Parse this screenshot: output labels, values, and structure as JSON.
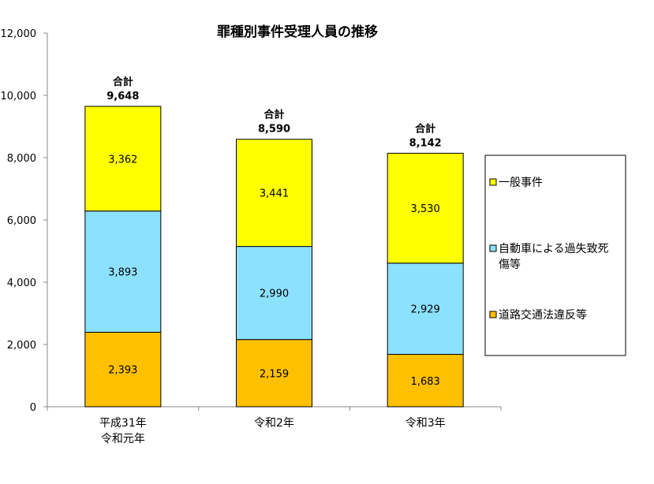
{
  "chart_data": {
    "type": "bar",
    "stacked": true,
    "title": "罪種別事件受理人員の推移",
    "categories": [
      "平成31年\n令和元年",
      "令和2年",
      "令和3年"
    ],
    "series": [
      {
        "name": "道路交通法違反等",
        "values": [
          2393,
          2159,
          1683
        ],
        "color": "#FFC000"
      },
      {
        "name": "自動車による過失致死傷等",
        "values": [
          3893,
          2990,
          2929
        ],
        "color": "#8CE1FF"
      },
      {
        "name": "一般事件",
        "values": [
          3362,
          3441,
          3530
        ],
        "color": "#FFFF00"
      }
    ],
    "total_label": "合計",
    "totals": [
      9648,
      8590,
      8142
    ],
    "ylim": [
      0,
      12000
    ],
    "yticks": [
      0,
      2000,
      4000,
      6000,
      8000,
      10000,
      12000
    ],
    "ytick_labels": [
      "0",
      "2,000",
      "4,000",
      "6,000",
      "8,000",
      "10,000",
      "12,000"
    ],
    "legend": {
      "position": "right",
      "entries": [
        "一般事件",
        "自動車による過失致死傷等",
        "道路交通法違反等"
      ]
    },
    "grid": false
  }
}
